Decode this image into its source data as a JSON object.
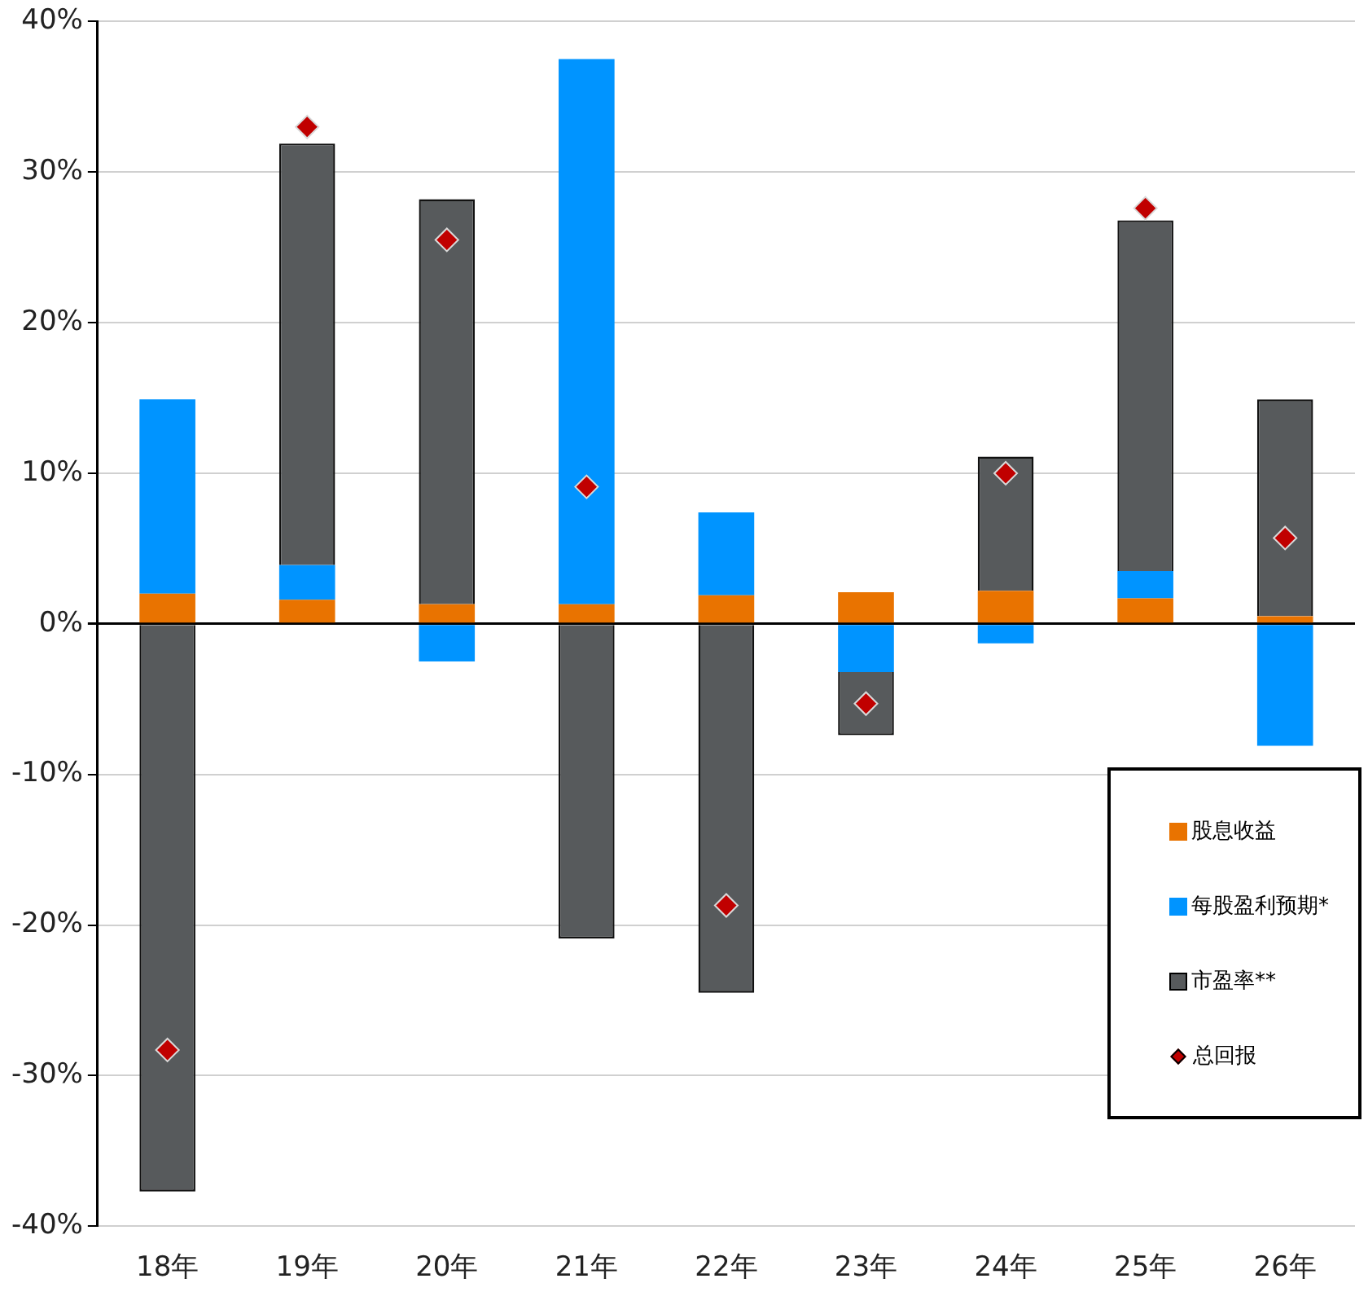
{
  "chart_data": {
    "type": "bar",
    "stacked": true,
    "categories": [
      "18年",
      "19年",
      "20年",
      "21年",
      "22年",
      "23年",
      "24年",
      "25年",
      "26年"
    ],
    "series": [
      {
        "name": "股息收益",
        "color": "#e97300",
        "values": [
          2.0,
          1.6,
          1.3,
          1.3,
          1.9,
          2.1,
          2.2,
          1.7,
          0.5
        ]
      },
      {
        "name": "每股盈利预期*",
        "color": "#0094ff",
        "values": [
          12.9,
          2.3,
          -2.5,
          36.2,
          5.5,
          -3.2,
          -1.3,
          1.8,
          -8.1
        ]
      },
      {
        "name": "市盈率**",
        "color": "#575a5c",
        "values": [
          -37.7,
          28.0,
          26.9,
          -20.9,
          -24.5,
          -4.2,
          8.9,
          23.3,
          14.4
        ]
      },
      {
        "name": "总回报",
        "type": "scatter",
        "color": "#c00000",
        "marker": "diamond",
        "x": [
          "18年",
          "19年",
          "20年",
          "21年",
          "22年",
          "23年",
          "24年",
          "25年",
          "26年"
        ],
        "values": [
          -28.3,
          33.0,
          25.5,
          9.1,
          -18.7,
          -5.3,
          10.0,
          27.6,
          5.7
        ]
      }
    ],
    "ylim": [
      -40,
      40
    ],
    "yticks": [
      {
        "value": -40,
        "label": "-40%"
      },
      {
        "value": -30,
        "label": "-30%"
      },
      {
        "value": -20,
        "label": "-20%"
      },
      {
        "value": -10,
        "label": "-10%"
      },
      {
        "value": 0,
        "label": "0%"
      },
      {
        "value": 10,
        "label": "10%"
      },
      {
        "value": 20,
        "label": "20%"
      },
      {
        "value": 30,
        "label": "30%"
      },
      {
        "value": 40,
        "label": "40%"
      }
    ],
    "grid": "y",
    "legend": "bottom right"
  }
}
